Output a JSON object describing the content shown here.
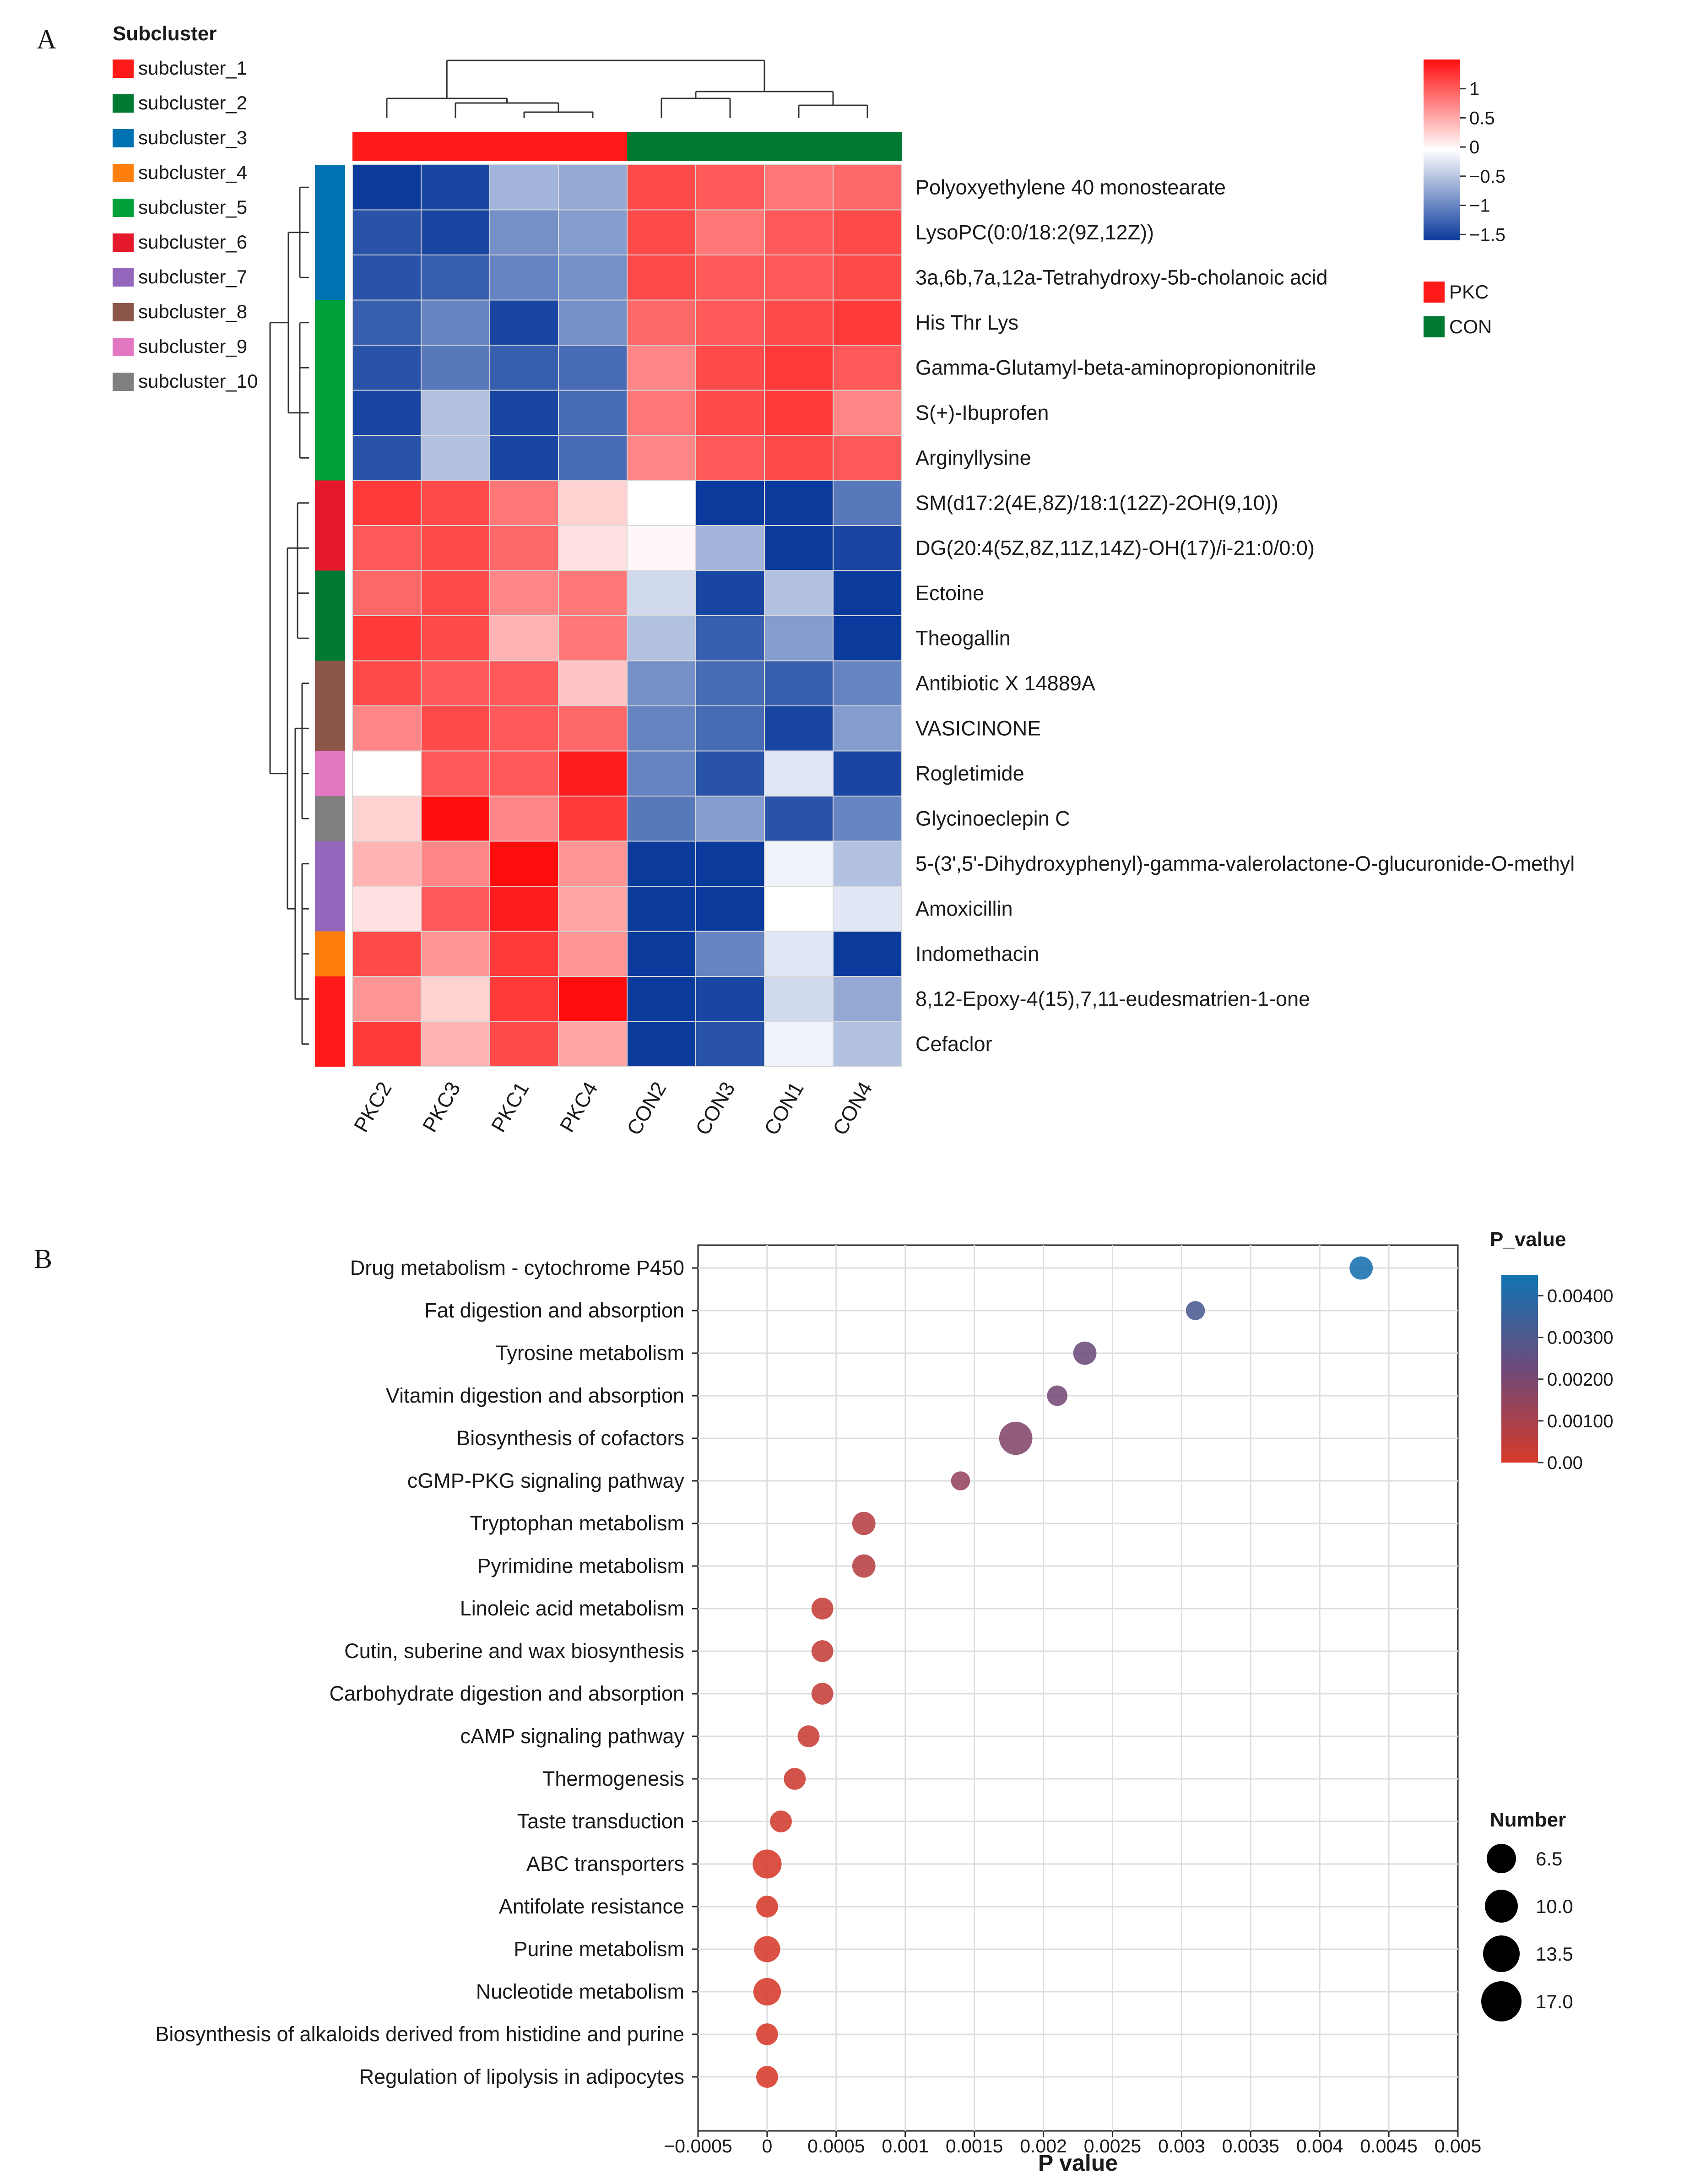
{
  "panels": {
    "a": "A",
    "b": "B"
  },
  "heatmap": {
    "type": "heatmap",
    "samples": [
      "PKC2",
      "PKC3",
      "PKC1",
      "PKC4",
      "CON2",
      "CON3",
      "CON1",
      "CON4"
    ],
    "sample_groups": [
      "PKC",
      "PKC",
      "PKC",
      "PKC",
      "CON",
      "CON",
      "CON",
      "CON"
    ],
    "groups": [
      {
        "name": "PKC",
        "color": "#ff1a1a"
      },
      {
        "name": "CON",
        "color": "#007a33"
      }
    ],
    "rows": [
      {
        "label": "Polyoxyethylene 40 monostearate",
        "subcluster": 3
      },
      {
        "label": "LysoPC(0:0/18:2(9Z,12Z))",
        "subcluster": 3
      },
      {
        "label": "3a,6b,7a,12a-Tetrahydroxy-5b-cholanoic acid",
        "subcluster": 3
      },
      {
        "label": "His Thr Lys",
        "subcluster": 5
      },
      {
        "label": "Gamma-Glutamyl-beta-aminopropiononitrile",
        "subcluster": 5
      },
      {
        "label": "S(+)-Ibuprofen",
        "subcluster": 5
      },
      {
        "label": "Arginyllysine",
        "subcluster": 5
      },
      {
        "label": "SM(d17:2(4E,8Z)/18:1(12Z)-2OH(9,10))",
        "subcluster": 6
      },
      {
        "label": "DG(20:4(5Z,8Z,11Z,14Z)-OH(17)/i-21:0/0:0)",
        "subcluster": 6
      },
      {
        "label": "Ectoine",
        "subcluster": 2
      },
      {
        "label": "Theogallin",
        "subcluster": 2
      },
      {
        "label": "Antibiotic X 14889A",
        "subcluster": 8
      },
      {
        "label": "VASICINONE",
        "subcluster": 8
      },
      {
        "label": "Rogletimide",
        "subcluster": 9
      },
      {
        "label": "Glycinoeclepin C",
        "subcluster": 10
      },
      {
        "label": "5-(3',5'-Dihydroxyphenyl)-gamma-valerolactone-O-glucuronide-O-methyl",
        "subcluster": 7
      },
      {
        "label": "Amoxicillin",
        "subcluster": 7
      },
      {
        "label": "Indomethacin",
        "subcluster": 4
      },
      {
        "label": "8,12-Epoxy-4(15),7,11-eudesmatrien-1-one",
        "subcluster": 1
      },
      {
        "label": "Cefaclor",
        "subcluster": 1
      }
    ],
    "values": [
      [
        -1.6,
        -1.5,
        -0.6,
        -0.7,
        1.2,
        1.1,
        0.9,
        1.0
      ],
      [
        -1.4,
        -1.5,
        -0.9,
        -0.8,
        1.2,
        0.9,
        1.1,
        1.2
      ],
      [
        -1.4,
        -1.3,
        -1.0,
        -0.9,
        1.2,
        1.1,
        1.1,
        1.2
      ],
      [
        -1.3,
        -1.0,
        -1.5,
        -0.9,
        1.0,
        1.1,
        1.2,
        1.3
      ],
      [
        -1.4,
        -1.1,
        -1.3,
        -1.2,
        0.8,
        1.2,
        1.3,
        1.1
      ],
      [
        -1.5,
        -0.5,
        -1.5,
        -1.2,
        0.9,
        1.2,
        1.3,
        0.8
      ],
      [
        -1.4,
        -0.5,
        -1.5,
        -1.2,
        0.8,
        1.1,
        1.2,
        1.1
      ],
      [
        1.3,
        1.2,
        0.9,
        0.3,
        0.0,
        -1.6,
        -1.6,
        -1.1
      ],
      [
        1.1,
        1.2,
        1.0,
        0.2,
        0.05,
        -0.6,
        -1.8,
        -1.5
      ],
      [
        1.0,
        1.2,
        0.8,
        0.9,
        -0.3,
        -1.5,
        -0.5,
        -1.8
      ],
      [
        1.3,
        1.2,
        0.5,
        0.9,
        -0.5,
        -1.3,
        -0.8,
        -1.8
      ],
      [
        1.2,
        1.1,
        1.1,
        0.4,
        -0.9,
        -1.2,
        -1.3,
        -1.0
      ],
      [
        0.8,
        1.2,
        1.1,
        1.0,
        -1.0,
        -1.2,
        -1.5,
        -0.8
      ],
      [
        0.0,
        1.1,
        1.1,
        1.5,
        -1.0,
        -1.4,
        -0.2,
        -1.5
      ],
      [
        0.3,
        1.6,
        0.8,
        1.3,
        -1.1,
        -0.8,
        -1.4,
        -1.0
      ],
      [
        0.5,
        0.8,
        1.6,
        0.7,
        -1.7,
        -1.7,
        -0.1,
        -0.5
      ],
      [
        0.2,
        1.1,
        1.5,
        0.6,
        -1.7,
        -1.7,
        0.0,
        -0.2
      ],
      [
        1.2,
        0.7,
        1.3,
        0.7,
        -1.6,
        -1.0,
        -0.2,
        -1.8
      ],
      [
        0.7,
        0.3,
        1.3,
        1.6,
        -1.7,
        -1.5,
        -0.3,
        -0.7
      ],
      [
        1.3,
        0.5,
        1.2,
        0.6,
        -1.8,
        -1.4,
        -0.1,
        -0.5
      ]
    ],
    "color_scale": {
      "ticks": [
        "1",
        "0.5",
        "0",
        "−0.5",
        "−1",
        "−1.5"
      ],
      "range": [
        -1.6,
        1.4
      ]
    },
    "subcluster_legend": {
      "title": "Subcluster",
      "items": [
        {
          "label": "subcluster_1",
          "color": "#ff1a1a"
        },
        {
          "label": "subcluster_2",
          "color": "#007a33"
        },
        {
          "label": "subcluster_3",
          "color": "#0072b2"
        },
        {
          "label": "subcluster_4",
          "color": "#ff7f0e"
        },
        {
          "label": "subcluster_5",
          "color": "#00a03a"
        },
        {
          "label": "subcluster_6",
          "color": "#e41a2c"
        },
        {
          "label": "subcluster_7",
          "color": "#9467bd"
        },
        {
          "label": "subcluster_8",
          "color": "#8c564b"
        },
        {
          "label": "subcluster_9",
          "color": "#e377c2"
        },
        {
          "label": "subcluster_10",
          "color": "#7f7f7f"
        }
      ]
    }
  },
  "chart_data": {
    "type": "scatter",
    "xlabel": "P value",
    "xlim": [
      -0.0005,
      0.005
    ],
    "xticks": [
      "−0.0005",
      "0",
      "0.0005",
      "0.001",
      "0.0015",
      "0.002",
      "0.0025",
      "0.003",
      "0.0035",
      "0.004",
      "0.0045",
      "0.005"
    ],
    "points": [
      {
        "pathway": "Drug metabolism - cytochrome P450",
        "p_value": 0.0043,
        "number": 10
      },
      {
        "pathway": "Fat digestion and absorption",
        "p_value": 0.0031,
        "number": 7
      },
      {
        "pathway": "Tyrosine metabolism",
        "p_value": 0.0023,
        "number": 10
      },
      {
        "pathway": "Vitamin digestion and absorption",
        "p_value": 0.0021,
        "number": 8
      },
      {
        "pathway": "Biosynthesis of cofactors",
        "p_value": 0.0018,
        "number": 17
      },
      {
        "pathway": "cGMP-PKG signaling pathway",
        "p_value": 0.0014,
        "number": 7
      },
      {
        "pathway": "Tryptophan metabolism",
        "p_value": 0.0007,
        "number": 10
      },
      {
        "pathway": "Pyrimidine metabolism",
        "p_value": 0.0007,
        "number": 10
      },
      {
        "pathway": "Linoleic acid metabolism",
        "p_value": 0.0004,
        "number": 9
      },
      {
        "pathway": "Cutin, suberine and wax biosynthesis",
        "p_value": 0.0004,
        "number": 9
      },
      {
        "pathway": "Carbohydrate digestion and absorption",
        "p_value": 0.0004,
        "number": 9
      },
      {
        "pathway": "cAMP signaling pathway",
        "p_value": 0.0003,
        "number": 9
      },
      {
        "pathway": "Thermogenesis",
        "p_value": 0.0002,
        "number": 9
      },
      {
        "pathway": "Taste transduction",
        "p_value": 0.0001,
        "number": 9
      },
      {
        "pathway": "ABC transporters",
        "p_value": 0.0,
        "number": 14
      },
      {
        "pathway": "Antifolate resistance",
        "p_value": 0.0,
        "number": 9
      },
      {
        "pathway": "Purine metabolism",
        "p_value": 0.0,
        "number": 12
      },
      {
        "pathway": "Nucleotide metabolism",
        "p_value": 0.0,
        "number": 13
      },
      {
        "pathway": "Biosynthesis of alkaloids derived from histidine and purine",
        "p_value": 0.0,
        "number": 9
      },
      {
        "pathway": "Regulation of lipolysis in adipocytes",
        "p_value": 0.0,
        "number": 9
      }
    ],
    "color_legend": {
      "title": "P_value",
      "ticks": [
        "0.00400",
        "0.00300",
        "0.00200",
        "0.00100",
        "0.00"
      ],
      "range": [
        0,
        0.0045
      ]
    },
    "size_legend": {
      "title": "Number",
      "values": [
        "6.5",
        "10.0",
        "13.5",
        "17.0"
      ]
    },
    "grid": true
  }
}
